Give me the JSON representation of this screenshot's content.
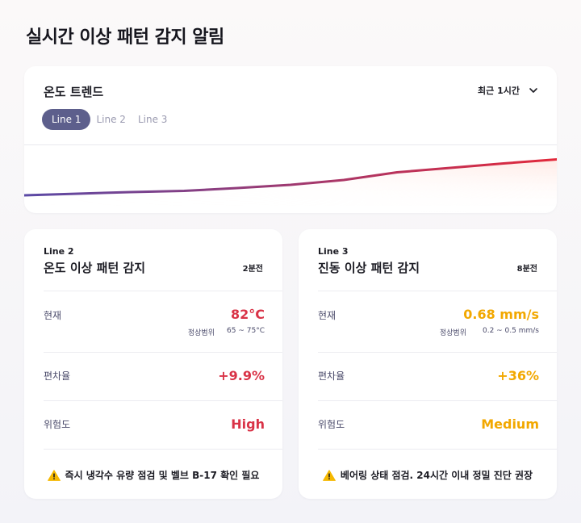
{
  "page": {
    "title": "실시간 이상 패턴 감지 알림"
  },
  "trend": {
    "title": "온도 트렌드",
    "range_label": "최근 1시간",
    "tabs": [
      {
        "label": "Line 1",
        "active": true
      },
      {
        "label": "Line 2",
        "active": false
      },
      {
        "label": "Line 3",
        "active": false
      }
    ],
    "line_start_color": "#5b4aa6",
    "line_end_color": "#e2283a"
  },
  "chart_data": {
    "type": "line",
    "title": "",
    "xlabel": "",
    "ylabel": "",
    "x": [
      0,
      1,
      2,
      3,
      4,
      5,
      6,
      7,
      8,
      9,
      10
    ],
    "series": [
      {
        "values": [
          0.0,
          0.04,
          0.08,
          0.11,
          0.18,
          0.26,
          0.38,
          0.57,
          0.68,
          0.79,
          0.89
        ]
      }
    ],
    "ylim": [
      0,
      1
    ],
    "grid": false
  },
  "alerts": [
    {
      "line": "Line 2",
      "title": "온도 이상 패턴 감지",
      "time": "2분전",
      "current_label": "현재",
      "current_value": "82°C",
      "normal_range_label": "정상범위",
      "normal_range": "65 ~ 75°C",
      "deviation_label": "편차율",
      "deviation_value": "+9.9%",
      "risk_label": "위험도",
      "risk_value": "High",
      "footer": "즉시 냉각수 유량 점검 및 벨브 B-17 확인 필요",
      "accent": "#d93347"
    },
    {
      "line": "Line 3",
      "title": "진동 이상 패턴 감지",
      "time": "8분전",
      "current_label": "현재",
      "current_value": "0.68 mm/s",
      "normal_range_label": "정상범위",
      "normal_range": "0.2 ~ 0.5 mm/s",
      "deviation_label": "편차율",
      "deviation_value": "+36%",
      "risk_label": "위험도",
      "risk_value": "Medium",
      "footer": "베어링 상태 점검. 24시간 이내 정밀 진단 권장",
      "accent": "#f2a800"
    }
  ],
  "icons": {
    "range_chevron": "chevron-down-icon",
    "warning": "warning-icon"
  }
}
